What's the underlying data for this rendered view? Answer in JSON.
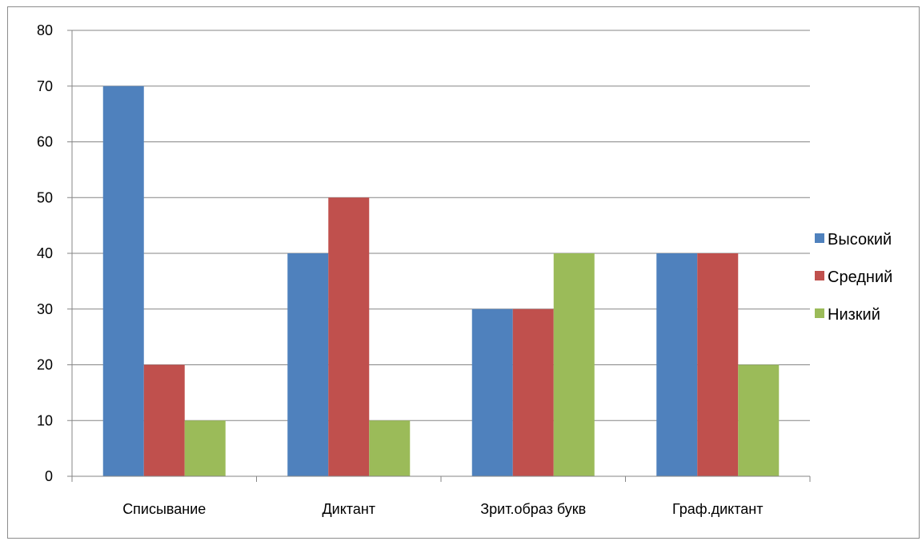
{
  "chart_data": {
    "type": "bar",
    "categories": [
      "Списывание",
      "Диктант",
      "Зрит.образ букв",
      "Граф.диктант"
    ],
    "series": [
      {
        "name": "Высокий",
        "values": [
          70,
          40,
          30,
          40
        ],
        "color": "#4F81BD"
      },
      {
        "name": "Средний",
        "values": [
          20,
          50,
          30,
          40
        ],
        "color": "#C0504D"
      },
      {
        "name": "Низкий",
        "values": [
          10,
          10,
          40,
          20
        ],
        "color": "#9BBB59"
      }
    ],
    "title": "",
    "xlabel": "",
    "ylabel": "",
    "ylim": [
      0,
      80
    ],
    "yticks": [
      0,
      10,
      20,
      30,
      40,
      50,
      60,
      70,
      80
    ],
    "grid": true,
    "legend_position": "right"
  }
}
